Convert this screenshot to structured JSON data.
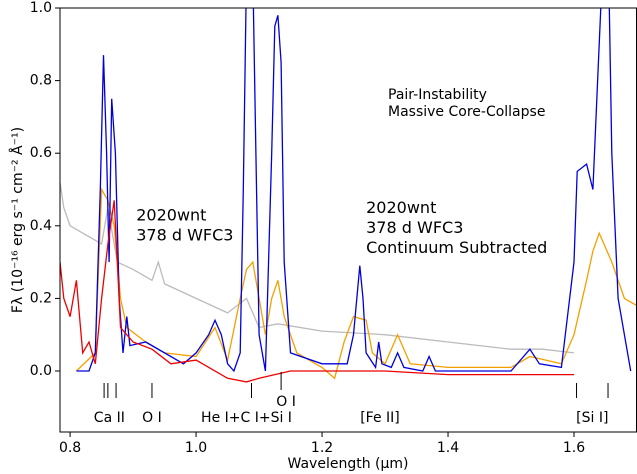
{
  "chart_data": {
    "type": "line",
    "xlabel": "Wavelength (µm)",
    "ylabel": "Fλ (10⁻¹⁶ erg s⁻¹ cm⁻² Å⁻¹)",
    "xlim": [
      0.784,
      1.7
    ],
    "ylim": [
      -0.168,
      1.0
    ],
    "xticks": [
      0.8,
      {
        "value": 1.0,
        "label": "1.0"
      },
      1.2,
      1.4,
      1.6
    ],
    "yticks": [
      {
        "value": 0,
        "label": "0.0"
      },
      0.2,
      0.4,
      0.6,
      0.8,
      {
        "value": 1.0,
        "label": "1.0"
      }
    ],
    "series": [
      {
        "color": "#bbbbbb",
        "x": [
          0.784,
          0.79,
          0.8,
          0.82,
          0.84,
          0.85,
          0.86,
          0.875,
          0.9,
          0.93,
          0.94,
          0.95,
          1.0,
          1.05,
          1.08,
          1.1,
          1.13,
          1.2,
          1.3,
          1.4,
          1.5,
          1.55,
          1.6
        ],
        "values": [
          0.52,
          0.45,
          0.4,
          0.38,
          0.36,
          0.35,
          0.45,
          0.3,
          0.28,
          0.25,
          0.3,
          0.24,
          0.2,
          0.16,
          0.2,
          0.12,
          0.13,
          0.11,
          0.1,
          0.08,
          0.06,
          0.06,
          0.05
        ]
      },
      {
        "name": "Massive Core-Collapse",
        "color": "#f5a000",
        "x": [
          0.81,
          0.84,
          0.85,
          0.86,
          0.87,
          0.88,
          0.89,
          0.92,
          0.95,
          1.0,
          1.03,
          1.05,
          1.07,
          1.08,
          1.09,
          1.1,
          1.11,
          1.12,
          1.13,
          1.14,
          1.16,
          1.2,
          1.22,
          1.235,
          1.25,
          1.27,
          1.28,
          1.3,
          1.32,
          1.34,
          1.4,
          1.5,
          1.53,
          1.58,
          1.6,
          1.62,
          1.63,
          1.64,
          1.66,
          1.68,
          1.7
        ],
        "values": [
          0.0,
          0.05,
          0.5,
          0.47,
          0.4,
          0.2,
          0.12,
          0.08,
          0.05,
          0.04,
          0.12,
          0.03,
          0.2,
          0.28,
          0.3,
          0.2,
          0.1,
          0.2,
          0.25,
          0.15,
          0.05,
          0.01,
          -0.02,
          0.08,
          0.15,
          0.14,
          0.05,
          0.02,
          0.1,
          0.02,
          0.01,
          0.01,
          0.04,
          0.02,
          0.1,
          0.25,
          0.33,
          0.38,
          0.3,
          0.2,
          0.18
        ]
      },
      {
        "name": "Pair-Instability",
        "color": "#0000dd",
        "x": [
          0.81,
          0.83,
          0.84,
          0.848,
          0.853,
          0.858,
          0.862,
          0.866,
          0.872,
          0.878,
          0.884,
          0.89,
          0.895,
          0.92,
          0.98,
          1.0,
          1.02,
          1.03,
          1.04,
          1.05,
          1.06,
          1.07,
          1.075,
          1.08,
          1.09,
          1.095,
          1.1,
          1.11,
          1.12,
          1.125,
          1.13,
          1.135,
          1.14,
          1.15,
          1.2,
          1.24,
          1.25,
          1.26,
          1.265,
          1.27,
          1.285,
          1.29,
          1.295,
          1.31,
          1.32,
          1.33,
          1.36,
          1.37,
          1.38,
          1.5,
          1.53,
          1.545,
          1.58,
          1.6,
          1.605,
          1.62,
          1.63,
          1.64,
          1.645,
          1.655,
          1.66,
          1.67,
          1.68,
          1.69
        ],
        "values": [
          0.0,
          0.0,
          0.05,
          0.5,
          0.87,
          0.6,
          0.3,
          0.75,
          0.6,
          0.2,
          0.05,
          0.15,
          0.07,
          0.08,
          0.02,
          0.05,
          0.1,
          0.14,
          0.1,
          0.02,
          0.0,
          0.05,
          0.5,
          1.1,
          1.1,
          0.6,
          0.1,
          0.0,
          0.6,
          0.95,
          0.98,
          0.85,
          0.3,
          0.05,
          0.02,
          0.02,
          0.1,
          0.29,
          0.2,
          0.05,
          0.01,
          0.08,
          0.02,
          0.01,
          0.05,
          0.01,
          0.0,
          0.04,
          0.0,
          0.0,
          0.06,
          0.02,
          0.01,
          0.3,
          0.55,
          0.57,
          0.5,
          0.9,
          1.1,
          1.1,
          0.6,
          0.2,
          0.1,
          0.0
        ]
      },
      {
        "color": "#ee0000",
        "x": [
          0.784,
          0.79,
          0.8,
          0.81,
          0.82,
          0.83,
          0.84,
          0.85,
          0.86,
          0.87,
          0.875,
          0.88,
          0.9,
          0.93,
          0.96,
          1.0,
          1.05,
          1.08,
          1.1,
          1.15,
          1.2,
          1.3,
          1.4,
          1.5,
          1.6
        ],
        "values": [
          0.3,
          0.2,
          0.15,
          0.25,
          0.05,
          0.08,
          0.02,
          0.2,
          0.35,
          0.47,
          0.3,
          0.12,
          0.08,
          0.06,
          0.02,
          0.03,
          -0.02,
          -0.03,
          -0.02,
          0.0,
          0.0,
          0.0,
          -0.01,
          -0.01,
          -0.01
        ]
      }
    ],
    "annotations": [
      {
        "lines": [
          "2020wnt",
          "378 d WFC3"
        ],
        "color": "#999999",
        "x": 0.905,
        "y": 0.4
      },
      {
        "lines": [
          "2020wnt",
          "378 d WFC3",
          "Continuum Subtracted"
        ],
        "color": "#ee0000",
        "x": 1.27,
        "y": 0.42
      }
    ],
    "line_ids": [
      {
        "label": "Ca II",
        "x": [
          0.854,
          0.86,
          0.873
        ]
      },
      {
        "label": "O I",
        "x": [
          0.93
        ]
      },
      {
        "label": "He I+C I+Si I",
        "x": [
          1.088
        ]
      },
      {
        "label": "O I",
        "x": [
          1.135
        ]
      },
      {
        "label": "[Fe II]",
        "x": []
      },
      {
        "label": "[Si I]",
        "x": [
          1.604,
          1.654
        ]
      }
    ]
  }
}
